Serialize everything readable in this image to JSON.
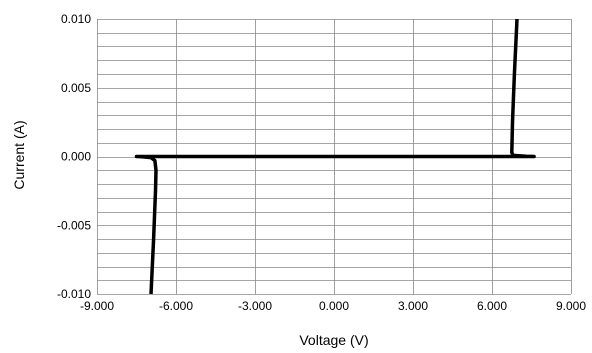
{
  "chart_data": {
    "type": "line",
    "title": "",
    "xlabel": "Voltage (V)",
    "ylabel": "Current (A)",
    "xlim": [
      -9.0,
      9.0
    ],
    "ylim": [
      -0.01,
      0.01
    ],
    "x_ticks": [
      -9.0,
      -6.0,
      -3.0,
      0.0,
      3.0,
      6.0,
      9.0
    ],
    "x_tick_labels": [
      "-9.000",
      "-6.000",
      "-3.000",
      "0.000",
      "3.000",
      "6.000",
      "9.000"
    ],
    "y_ticks": [
      -0.01,
      -0.005,
      0.0,
      0.005,
      0.01
    ],
    "y_tick_labels": [
      "-0.010",
      "-0.005",
      "0.000",
      "0.005",
      "0.010"
    ],
    "x_grid_step": 3.0,
    "y_grid_step": 0.001,
    "grid": true,
    "legend": "none",
    "line_color": "#000000",
    "grid_color": "#888888",
    "series": [
      {
        "x": [
          -6.95,
          -6.85,
          -6.78,
          -6.76,
          -6.8,
          -6.95,
          -7.3,
          -7.5,
          0.0,
          6.75,
          7.3,
          7.6,
          7.3,
          6.8,
          6.75,
          6.78,
          6.85,
          6.95
        ],
        "y": [
          -0.01,
          -0.006,
          -0.0025,
          -0.001,
          -0.0003,
          -8e-05,
          -2e-05,
          0.0,
          0.0,
          0.0,
          0.0,
          0.0,
          2e-05,
          8e-05,
          0.0003,
          0.0025,
          0.006,
          0.01
        ]
      }
    ]
  }
}
